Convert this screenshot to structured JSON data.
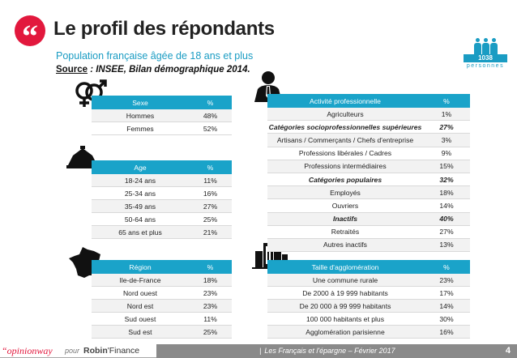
{
  "header": {
    "quote_glyph": "“",
    "title": "Le profil des répondants",
    "subtitle": "Population française âgée de 18 ans et plus",
    "source_label": "Source",
    "source_text": " : INSEE, Bilan démographique 2014."
  },
  "respondents": {
    "count": "1038",
    "unit": "personnes"
  },
  "colors": {
    "accent_red": "#e2183d",
    "header_blue": "#1aa3c9",
    "footer_gray": "#8a8a8a"
  },
  "tables": {
    "sexe": {
      "icon": "gender-symbols-icon",
      "headers": [
        "Sexe",
        "%"
      ],
      "rows": [
        {
          "label": "Hommes",
          "value": "48%"
        },
        {
          "label": "Femmes",
          "value": "52%"
        }
      ]
    },
    "age": {
      "icon": "hourglass-icon",
      "headers": [
        "Age",
        "%"
      ],
      "rows": [
        {
          "label": "18-24 ans",
          "value": "11%"
        },
        {
          "label": "25-34 ans",
          "value": "16%"
        },
        {
          "label": "35-49 ans",
          "value": "27%"
        },
        {
          "label": "50-64 ans",
          "value": "25%"
        },
        {
          "label": "65 ans et plus",
          "value": "21%"
        }
      ]
    },
    "region": {
      "icon": "france-map-icon",
      "headers": [
        "Région",
        "%"
      ],
      "rows": [
        {
          "label": "Ile-de-France",
          "value": "18%"
        },
        {
          "label": "Nord ouest",
          "value": "23%"
        },
        {
          "label": "Nord est",
          "value": "23%"
        },
        {
          "label": "Sud ouest",
          "value": "11%"
        },
        {
          "label": "Sud est",
          "value": "25%"
        }
      ]
    },
    "activite": {
      "icon": "businessman-icon",
      "headers": [
        "Activité professionnelle",
        "%"
      ],
      "rows": [
        {
          "label": "Agriculteurs",
          "value": "1%",
          "bold": false
        },
        {
          "label": "Catégories socioprofessionnelles supérieures",
          "value": "27%",
          "bold": true
        },
        {
          "label": "Artisans / Commerçants / Chefs d'entreprise",
          "value": "3%",
          "bold": false
        },
        {
          "label": "Professions libérales / Cadres",
          "value": "9%",
          "bold": false
        },
        {
          "label": "Professions intermédiaires",
          "value": "15%",
          "bold": false
        },
        {
          "label": "Catégories populaires",
          "value": "32%",
          "bold": true
        },
        {
          "label": "Employés",
          "value": "18%",
          "bold": false
        },
        {
          "label": "Ouvriers",
          "value": "14%",
          "bold": false
        },
        {
          "label": "Inactifs",
          "value": "40%",
          "bold": true
        },
        {
          "label": "Retraités",
          "value": "27%",
          "bold": false
        },
        {
          "label": "Autres inactifs",
          "value": "13%",
          "bold": false
        }
      ]
    },
    "agglomeration": {
      "icon": "city-buildings-icon",
      "headers": [
        "Taille d'agglomération",
        "%"
      ],
      "rows": [
        {
          "label": "Une commune rurale",
          "value": "23%"
        },
        {
          "label": "De 2000 à 19 999 habitants",
          "value": "17%"
        },
        {
          "label": "De 20 000 à 99 999 habitants",
          "value": "14%"
        },
        {
          "label": "100 000 habitants et plus",
          "value": "30%"
        },
        {
          "label": "Agglomération parisienne",
          "value": "16%"
        }
      ]
    }
  },
  "footer": {
    "brand_left": "“opinionway",
    "pour": "pour",
    "brand_right_a": "Robin",
    "brand_right_b": "'Finance",
    "center_text": "Les Français et l'épargne – Février 2017",
    "page_number": "4"
  }
}
